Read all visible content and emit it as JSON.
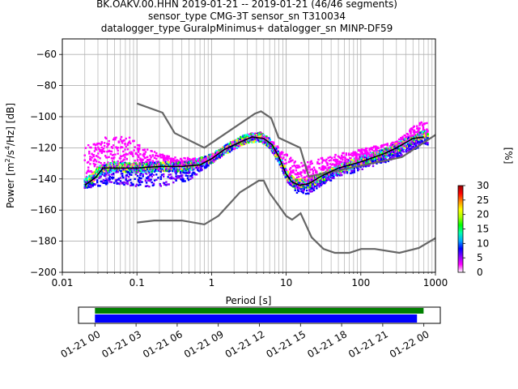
{
  "title_lines": [
    "BK.OAKV.00.HHN   2019-01-21 -- 2019-01-21  (46/46 segments)",
    "sensor_type CMG-3T sensor_sn T310034",
    "datalogger_type GuralpMinimus+ datalogger_sn MINP-DF59"
  ],
  "chart_data": [
    {
      "type": "heatmap",
      "title": "BK.OAKV.00.HHN   2019-01-21 -- 2019-01-21  (46/46 segments)",
      "xlabel": "Period [s]",
      "ylabel_main": "Power [m",
      "ylabel_sup1": "2",
      "ylabel_mid": "/s",
      "ylabel_sup2": "4",
      "ylabel_tail": "/Hz] [dB]",
      "xscale": "log",
      "xlim": [
        0.01,
        1000
      ],
      "ylim": [
        -200,
        -50
      ],
      "grid": "vertical log gridlines and horizontal gridlines at 20 dB",
      "x_tick_labels": [
        "0.01",
        "0.1",
        "1",
        "10",
        "100",
        "1000"
      ],
      "x_tick_values": [
        0.01,
        0.1,
        1,
        10,
        100,
        1000
      ],
      "y_tick_labels": [
        "−60",
        "−80",
        "−100",
        "−120",
        "−140",
        "−160",
        "−180",
        "−200"
      ],
      "y_tick_values": [
        -60,
        -80,
        -100,
        -120,
        -140,
        -160,
        -180,
        -200
      ],
      "colorbar": {
        "label": "[%]",
        "range": [
          0,
          30
        ],
        "tick_labels": [
          "0",
          "5",
          "10",
          "15",
          "20",
          "25",
          "30"
        ],
        "tick_values": [
          0,
          5,
          10,
          15,
          20,
          25,
          30
        ],
        "colormap": [
          "#ffffff",
          "#ff00ff",
          "#8800ff",
          "#0000ff",
          "#00aaff",
          "#00ffaa",
          "#00ff00",
          "#aaff00",
          "#ffff00",
          "#ff8800",
          "#ff0000",
          "#990000"
        ]
      },
      "series": [
        {
          "role": "mode",
          "color": "#000000",
          "points": [
            [
              0.02,
              -144
            ],
            [
              0.028,
              -139
            ],
            [
              0.035,
              -133
            ],
            [
              0.05,
              -133
            ],
            [
              0.1,
              -133
            ],
            [
              0.2,
              -132
            ],
            [
              0.4,
              -132
            ],
            [
              0.7,
              -131
            ],
            [
              1,
              -127
            ],
            [
              1.5,
              -121
            ],
            [
              2.5,
              -116
            ],
            [
              3.5,
              -113
            ],
            [
              5,
              -114
            ],
            [
              6.5,
              -118
            ],
            [
              8,
              -126
            ],
            [
              10,
              -137
            ],
            [
              12,
              -142
            ],
            [
              15,
              -144
            ],
            [
              20,
              -143
            ],
            [
              30,
              -138
            ],
            [
              50,
              -133
            ],
            [
              100,
              -129
            ],
            [
              200,
              -124
            ],
            [
              300,
              -120
            ],
            [
              500,
              -114
            ],
            [
              700,
              -113
            ]
          ]
        },
        {
          "role": "new-high-noise-model",
          "color": "#666666",
          "points": [
            [
              0.1,
              -91.5
            ],
            [
              0.22,
              -97.4
            ],
            [
              0.32,
              -110.5
            ],
            [
              0.8,
              -120
            ],
            [
              3.8,
              -98
            ],
            [
              4.6,
              -96.5
            ],
            [
              6.3,
              -101
            ],
            [
              7.9,
              -113.5
            ],
            [
              15.4,
              -120
            ],
            [
              20,
              -138.5
            ],
            [
              354.8,
              -126
            ],
            [
              10000,
              -80
            ]
          ]
        },
        {
          "role": "new-low-noise-model",
          "color": "#666666",
          "points": [
            [
              0.1,
              -168
            ],
            [
              0.17,
              -166.7
            ],
            [
              0.4,
              -166.7
            ],
            [
              0.8,
              -169.2
            ],
            [
              1.24,
              -163.7
            ],
            [
              2.4,
              -148.6
            ],
            [
              4.3,
              -141.1
            ],
            [
              5,
              -141.1
            ],
            [
              6,
              -149
            ],
            [
              10,
              -163.8
            ],
            [
              12,
              -166.2
            ],
            [
              15.6,
              -162.1
            ],
            [
              21.9,
              -177.5
            ],
            [
              31.6,
              -185
            ],
            [
              45,
              -187.5
            ],
            [
              70,
              -187.5
            ],
            [
              101,
              -185
            ],
            [
              154,
              -185
            ],
            [
              328,
              -187.5
            ],
            [
              600,
              -184.4
            ],
            [
              1000,
              -178
            ]
          ]
        },
        {
          "role": "psd-cloud-core",
          "colors": [
            "#ff00ff",
            "#0000ff",
            "#00ffff",
            "#00ff00",
            "#ffff00"
          ],
          "points": [
            [
              0.02,
              -143
            ],
            [
              0.025,
              -140
            ],
            [
              0.03,
              -135
            ],
            [
              0.05,
              -132
            ],
            [
              0.1,
              -133
            ],
            [
              0.2,
              -132
            ],
            [
              0.5,
              -132
            ],
            [
              1,
              -127
            ],
            [
              2,
              -118
            ],
            [
              3,
              -114
            ],
            [
              4.5,
              -113
            ],
            [
              6,
              -117
            ],
            [
              8,
              -126
            ],
            [
              10,
              -137
            ],
            [
              13,
              -143
            ],
            [
              20,
              -143
            ],
            [
              40,
              -136
            ],
            [
              80,
              -130
            ],
            [
              200,
              -124
            ],
            [
              400,
              -117
            ],
            [
              700,
              -112
            ]
          ]
        },
        {
          "role": "psd-cloud-upper",
          "color": "#ff00ff",
          "points": [
            [
              0.03,
              -117
            ],
            [
              0.04,
              -112
            ],
            [
              0.08,
              -113
            ],
            [
              0.12,
              -120
            ],
            [
              0.3,
              -126
            ],
            [
              0.8,
              -127
            ],
            [
              1.5,
              -121
            ],
            [
              3,
              -114
            ],
            [
              5,
              -112
            ],
            [
              7,
              -117
            ],
            [
              10,
              -124
            ],
            [
              15,
              -130
            ],
            [
              25,
              -127
            ],
            [
              50,
              -124
            ],
            [
              100,
              -121
            ],
            [
              300,
              -116
            ],
            [
              550,
              -105
            ],
            [
              700,
              -103
            ]
          ]
        },
        {
          "role": "psd-cloud-lower",
          "color": "#8800ff",
          "points": [
            [
              0.02,
              -146
            ],
            [
              0.05,
              -143
            ],
            [
              0.1,
              -145
            ],
            [
              0.2,
              -145
            ],
            [
              0.5,
              -141
            ],
            [
              1,
              -130
            ],
            [
              2,
              -119
            ],
            [
              4,
              -114
            ],
            [
              6,
              -120
            ],
            [
              8,
              -130
            ],
            [
              10,
              -141
            ],
            [
              14,
              -149
            ],
            [
              20,
              -150
            ],
            [
              40,
              -141
            ],
            [
              80,
              -136
            ],
            [
              200,
              -130
            ],
            [
              400,
              -124
            ],
            [
              700,
              -118
            ]
          ]
        }
      ]
    },
    {
      "type": "timeline",
      "tick_labels": [
        "01-21 00",
        "01-21 03",
        "01-21 06",
        "01-21 09",
        "01-21 12",
        "01-21 15",
        "01-21 18",
        "01-21 21",
        "01-22 00"
      ],
      "tick_hours": [
        0,
        3,
        6,
        9,
        12,
        15,
        18,
        21,
        24
      ],
      "xlim_hours": [
        -1.2,
        25.2
      ],
      "bars": [
        {
          "role": "data-coverage",
          "color": "#008000",
          "start_hour": 0,
          "end_hour": 23.98
        },
        {
          "role": "psd-coverage",
          "color": "#0000ff",
          "start_hour": 0,
          "end_hour": 23.5
        }
      ]
    }
  ]
}
